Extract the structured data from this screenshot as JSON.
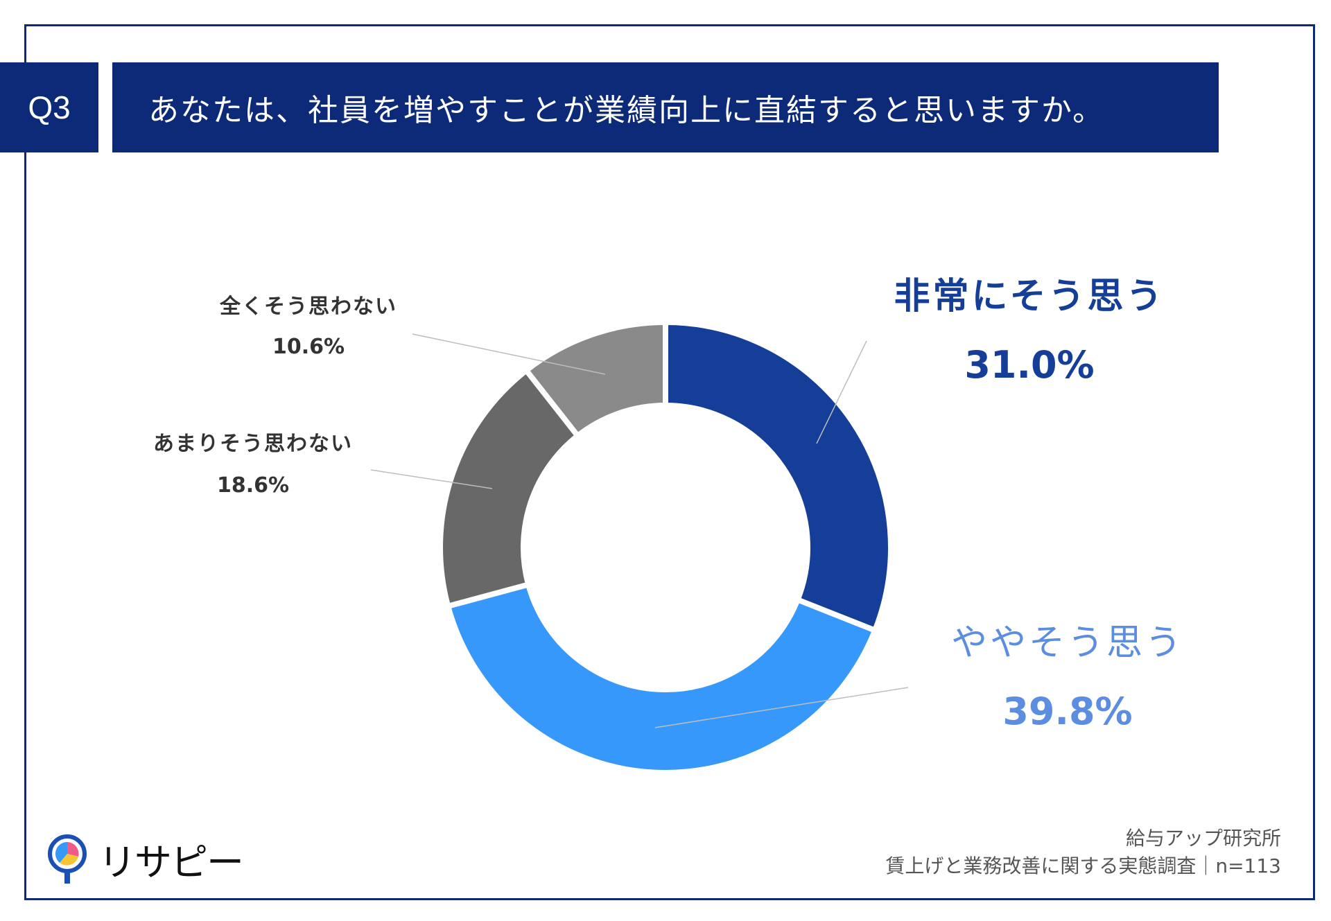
{
  "header": {
    "badge": "Q3",
    "question": "あなたは、社員を増やすことが業績向上に直結すると思いますか。"
  },
  "chart_data": {
    "type": "pie",
    "style": "donut",
    "categories": [
      "非常にそう思う",
      "ややそう思う",
      "あまりそう思わない",
      "全くそう思わない"
    ],
    "values": [
      31.0,
      39.8,
      18.6,
      10.6
    ],
    "value_labels": [
      "31.0%",
      "39.8%",
      "18.6%",
      "10.6%"
    ],
    "colors": [
      "#143e97",
      "#3698fb",
      "#686868",
      "#8a8a8a"
    ],
    "label_colors": [
      "#143e97",
      "#5b8ee0",
      "#333333",
      "#333333"
    ]
  },
  "logo": {
    "text": "リサピー"
  },
  "footer": {
    "line1": "給与アップ研究所",
    "line2": "賃上げと業務改善に関する実態調査｜n=113"
  }
}
